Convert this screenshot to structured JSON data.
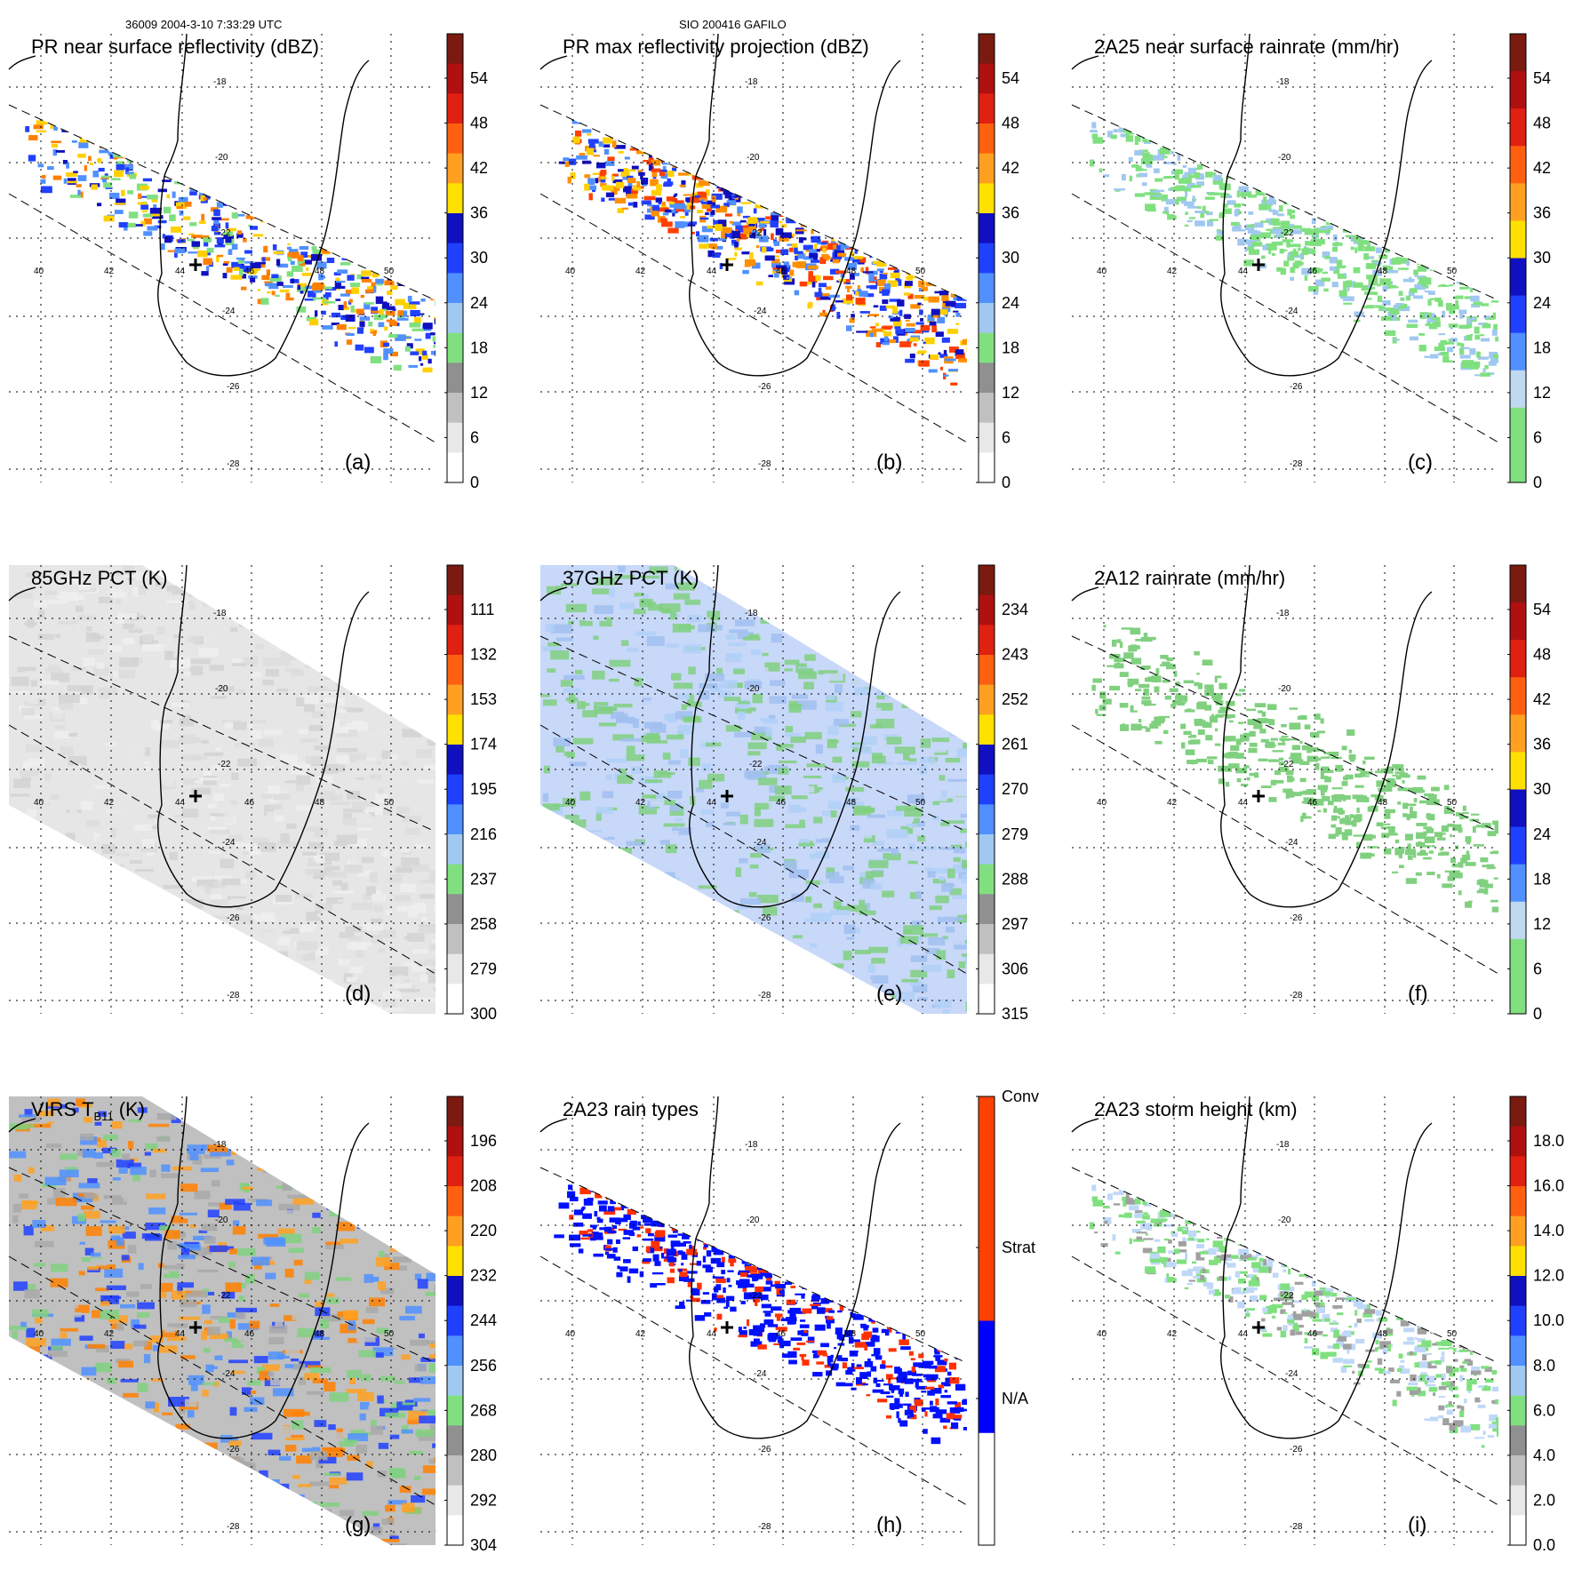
{
  "header": {
    "left": "36009 2004-3-10 7:33:29 UTC",
    "center": "SIO 200416 GAFILO"
  },
  "map": {
    "lon_labels": [
      "40",
      "42",
      "44",
      "46",
      "48",
      "50"
    ],
    "lat_labels": [
      "-18",
      "-20",
      "-22",
      "-24",
      "-26",
      "-28"
    ]
  },
  "colors": {
    "coast": "#000000",
    "grid": "#000000",
    "storm_center": "#000000"
  },
  "chart_data": [
    {
      "id": "a",
      "type": "heatmap",
      "title": "PR near surface reflectivity (dBZ)",
      "panel_label": "(a)",
      "colorbar": {
        "ticks": [
          "54",
          "48",
          "42",
          "36",
          "30",
          "24",
          "18",
          "12",
          "6",
          "0"
        ],
        "colors": [
          "#7a1a10",
          "#b01010",
          "#e02010",
          "#ff6010",
          "#ffa020",
          "#ffe000",
          "#1010c0",
          "#2040ff",
          "#5090ff",
          "#a0c8f0",
          "#80e080",
          "#909090",
          "#c0c0c0",
          "#e8e8e8",
          "#ffffff"
        ]
      },
      "field": {
        "swath": true,
        "palette": [
          "#2040ff",
          "#1010c0",
          "#5090ff",
          "#80e080",
          "#ffd000",
          "#ff8000"
        ],
        "density": 0.45,
        "seed": 11
      }
    },
    {
      "id": "b",
      "type": "heatmap",
      "title": "PR max reflectivity projection (dBZ)",
      "panel_label": "(b)",
      "colorbar": {
        "ticks": [
          "54",
          "48",
          "42",
          "36",
          "30",
          "24",
          "18",
          "12",
          "6",
          "0"
        ],
        "colors": [
          "#7a1a10",
          "#b01010",
          "#e02010",
          "#ff6010",
          "#ffa020",
          "#ffe000",
          "#1010c0",
          "#2040ff",
          "#5090ff",
          "#a0c8f0",
          "#80e080",
          "#909090",
          "#c0c0c0",
          "#e8e8e8",
          "#ffffff"
        ]
      },
      "field": {
        "swath": true,
        "palette": [
          "#2040ff",
          "#1010c0",
          "#5090ff",
          "#ffd000",
          "#ff9000",
          "#ff4000"
        ],
        "density": 0.6,
        "seed": 23
      }
    },
    {
      "id": "c",
      "type": "heatmap",
      "title": "2A25 near surface rainrate (mm/hr)",
      "panel_label": "(c)",
      "colorbar": {
        "ticks": [
          "54",
          "48",
          "42",
          "36",
          "30",
          "24",
          "18",
          "12",
          "6",
          "0"
        ],
        "colors": [
          "#7a1a10",
          "#b01010",
          "#e02010",
          "#ff6010",
          "#ffa020",
          "#ffe000",
          "#1010c0",
          "#2040ff",
          "#5090ff",
          "#c0d8f0",
          "#80e080",
          "#80e080"
        ]
      },
      "field": {
        "swath": true,
        "palette": [
          "#80e080",
          "#80e080",
          "#80e080",
          "#a0c8f0"
        ],
        "density": 0.5,
        "seed": 37
      }
    },
    {
      "id": "d",
      "type": "heatmap",
      "title": "85GHz PCT (K)",
      "panel_label": "(d)",
      "colorbar": {
        "ticks": [
          "111",
          "132",
          "153",
          "174",
          "195",
          "216",
          "237",
          "258",
          "279",
          "300"
        ],
        "colors": [
          "#7a1a10",
          "#b01010",
          "#e02010",
          "#ff6010",
          "#ffa020",
          "#ffe000",
          "#1010c0",
          "#2040ff",
          "#5090ff",
          "#a0c8f0",
          "#80e080",
          "#909090",
          "#c0c0c0",
          "#e8e8e8",
          "#ffffff"
        ]
      },
      "field": {
        "swath": false,
        "palette": [
          "#e6e6e6",
          "#dcdcdc",
          "#d2d2d2",
          "#eeeeee"
        ],
        "density": 1.0,
        "seed": 41
      }
    },
    {
      "id": "e",
      "type": "heatmap",
      "title": "37GHz PCT (K)",
      "panel_label": "(e)",
      "colorbar": {
        "ticks": [
          "234",
          "243",
          "252",
          "261",
          "270",
          "279",
          "288",
          "297",
          "306",
          "315"
        ],
        "colors": [
          "#7a1a10",
          "#b01010",
          "#e02010",
          "#ff6010",
          "#ffa020",
          "#ffe000",
          "#1010c0",
          "#2040ff",
          "#5090ff",
          "#a0c8f0",
          "#80e080",
          "#909090",
          "#c0c0c0",
          "#e8e8e8",
          "#ffffff"
        ]
      },
      "field": {
        "swath": false,
        "palette": [
          "#c8d8f8",
          "#a0c0f0",
          "#80d080",
          "#80d080",
          "#b0d0f8"
        ],
        "density": 1.0,
        "seed": 53
      }
    },
    {
      "id": "f",
      "type": "heatmap",
      "title": "2A12 rainrate (mm/hr)",
      "panel_label": "(f)",
      "colorbar": {
        "ticks": [
          "54",
          "48",
          "42",
          "36",
          "30",
          "24",
          "18",
          "12",
          "6",
          "0"
        ],
        "colors": [
          "#7a1a10",
          "#b01010",
          "#e02010",
          "#ff6010",
          "#ffa020",
          "#ffe000",
          "#1010c0",
          "#2040ff",
          "#5090ff",
          "#c0d8f0",
          "#80e080",
          "#80e080"
        ]
      },
      "field": {
        "swath": false,
        "palette": [
          "#80d080",
          "#80d080",
          "#80d080"
        ],
        "density": 0.35,
        "seed": 67
      }
    },
    {
      "id": "g",
      "type": "heatmap",
      "title": "VIRS T",
      "title_sub": "B11",
      "title_unit": "(K)",
      "panel_label": "(g)",
      "colorbar": {
        "ticks": [
          "196",
          "208",
          "220",
          "232",
          "244",
          "256",
          "268",
          "280",
          "292",
          "304"
        ],
        "colors": [
          "#7a1a10",
          "#b01010",
          "#e02010",
          "#ff6010",
          "#ffa020",
          "#ffe000",
          "#1010c0",
          "#2040ff",
          "#5090ff",
          "#a0c8f0",
          "#80e080",
          "#909090",
          "#c0c0c0",
          "#e8e8e8",
          "#ffffff"
        ]
      },
      "field": {
        "swath": false,
        "palette": [
          "#c0c0c0",
          "#a8a8a8",
          "#2040ff",
          "#5090ff",
          "#80d080",
          "#ffa020",
          "#ff8000"
        ],
        "density": 1.0,
        "seed": 79
      }
    },
    {
      "id": "h",
      "type": "heatmap",
      "title": "2A23 rain types",
      "panel_label": "(h)",
      "colorbar": {
        "ticks": [
          "Conv",
          "Strat",
          "N/A"
        ],
        "colors": [
          "#ff4000",
          "#ff4000",
          "#0000ff",
          "#ffffff"
        ]
      },
      "field": {
        "swath": true,
        "palette": [
          "#0010ff",
          "#0010ff",
          "#0010ff",
          "#ff3000"
        ],
        "density": 0.5,
        "seed": 83
      }
    },
    {
      "id": "i",
      "type": "heatmap",
      "title": "2A23 storm height (km)",
      "panel_label": "(i)",
      "colorbar": {
        "ticks": [
          "18.0",
          "16.0",
          "14.0",
          "12.0",
          "10.0",
          "8.0",
          "6.0",
          "4.0",
          "2.0",
          "0.0"
        ],
        "colors": [
          "#7a1a10",
          "#b01010",
          "#e02010",
          "#ff6010",
          "#ffa020",
          "#ffe000",
          "#1010c0",
          "#2040ff",
          "#5090ff",
          "#a0c8f0",
          "#80e080",
          "#909090",
          "#c0c0c0",
          "#e8e8e8",
          "#ffffff"
        ]
      },
      "field": {
        "swath": true,
        "palette": [
          "#80e080",
          "#80e080",
          "#a0a0a0",
          "#c0d8f8"
        ],
        "density": 0.45,
        "seed": 97
      }
    }
  ]
}
